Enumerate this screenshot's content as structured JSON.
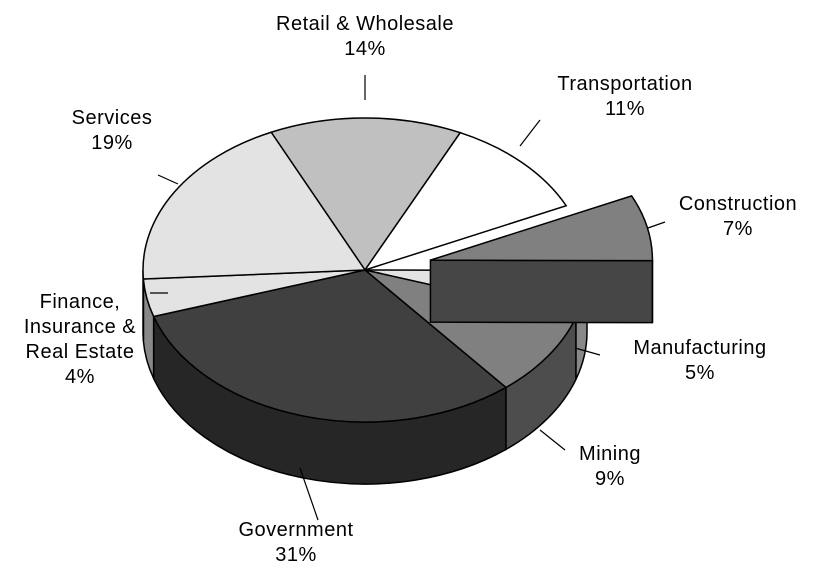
{
  "chart_data": {
    "type": "pie3d",
    "categories": [
      "Retail & Wholesale",
      "Transportation",
      "Construction",
      "Manufacturing",
      "Mining",
      "Government",
      "Finance, Insurance & Real Estate",
      "Services"
    ],
    "values": [
      14,
      11,
      7,
      5,
      9,
      31,
      4,
      19
    ],
    "value_labels": [
      "14%",
      "11%",
      "7%",
      "5%",
      "9%",
      "31%",
      "4%",
      "19%"
    ],
    "colors": [
      "#c0c0c0",
      "#ffffff",
      "#808080",
      "#e3e3e3",
      "#808080",
      "#404040",
      "#e3e3e3",
      "#e3e3e3"
    ],
    "exploded": [
      2
    ]
  }
}
